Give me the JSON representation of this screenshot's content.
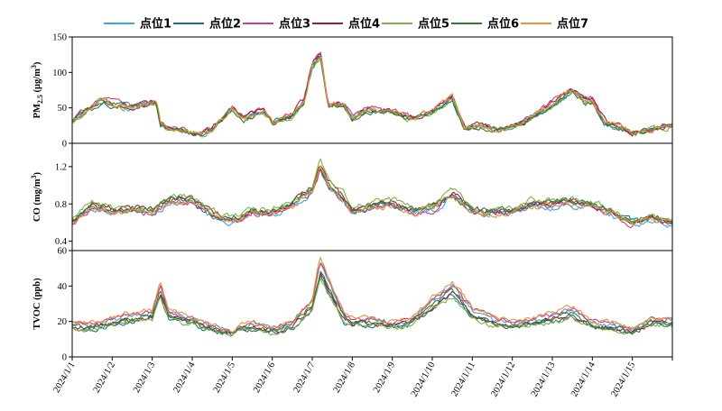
{
  "chart_data": {
    "type": "line",
    "x_categories": [
      "2024/1/1",
      "2024/1/2",
      "2024/1/3",
      "2024/1/4",
      "2024/1/5",
      "2024/1/6",
      "2024/1/7",
      "2024/1/8",
      "2024/1/9",
      "2024/1/10",
      "2024/1/11",
      "2024/1/12",
      "2024/1/13",
      "2024/1/14",
      "2024/1/15"
    ],
    "x_range": [
      "2024/1/1",
      "2024/1/16"
    ],
    "legend": {
      "placement": "top",
      "series": [
        {
          "name": "点位1",
          "color": "#3BA6DC"
        },
        {
          "name": "点位2",
          "color": "#1C6E8C"
        },
        {
          "name": "点位3",
          "color": "#CC3D8D"
        },
        {
          "name": "点位4",
          "color": "#9E1B3B"
        },
        {
          "name": "点位5",
          "color": "#7CB342"
        },
        {
          "name": "点位6",
          "color": "#2E7D32"
        },
        {
          "name": "点位7",
          "color": "#E8943A"
        }
      ]
    },
    "panels": [
      {
        "id": "pm25",
        "ylabel_main": "PM",
        "ylabel_sub": "2.5",
        "ylabel_unit": " (μg/m",
        "ylabel_sup": "3",
        "ylabel_close": ")",
        "ylim": [
          0,
          150
        ],
        "yticks": [
          0,
          50,
          100,
          150
        ],
        "ytick_labels": [
          "0",
          "50",
          "100",
          "150"
        ],
        "base_profile": [
          [
            0,
            30
          ],
          [
            0.3,
            45
          ],
          [
            0.8,
            63
          ],
          [
            1,
            55
          ],
          [
            1.5,
            50
          ],
          [
            1.8,
            55
          ],
          [
            2.1,
            60
          ],
          [
            2.2,
            30
          ],
          [
            2.4,
            20
          ],
          [
            2.8,
            18
          ],
          [
            3.2,
            12
          ],
          [
            3.5,
            20
          ],
          [
            4,
            50
          ],
          [
            4.3,
            35
          ],
          [
            4.8,
            45
          ],
          [
            5.0,
            30
          ],
          [
            5.5,
            40
          ],
          [
            5.8,
            60
          ],
          [
            6.0,
            110
          ],
          [
            6.2,
            125
          ],
          [
            6.4,
            55
          ],
          [
            6.8,
            55
          ],
          [
            7,
            35
          ],
          [
            7.4,
            48
          ],
          [
            8,
            45
          ],
          [
            8.5,
            35
          ],
          [
            9,
            45
          ],
          [
            9.5,
            65
          ],
          [
            9.8,
            20
          ],
          [
            10.2,
            25
          ],
          [
            10.8,
            20
          ],
          [
            11.3,
            30
          ],
          [
            12,
            55
          ],
          [
            12.5,
            75
          ],
          [
            12.8,
            60
          ],
          [
            13.0,
            60
          ],
          [
            13.3,
            30
          ],
          [
            14,
            15
          ],
          [
            14.5,
            20
          ],
          [
            15,
            25
          ]
        ],
        "noise": 6,
        "series_scale": [
          1.0,
          0.98,
          1.04,
          1.02,
          0.96,
          0.97,
          1.0
        ]
      },
      {
        "id": "co",
        "ylabel_main": "CO (mg/m",
        "ylabel_sup": "3",
        "ylabel_close": ")",
        "ylim": [
          0.3,
          1.45
        ],
        "yticks": [
          0.4,
          0.8,
          1.2
        ],
        "ytick_labels": [
          "0.4",
          "0.8",
          "1.2"
        ],
        "base_profile": [
          [
            0,
            0.62
          ],
          [
            0.5,
            0.78
          ],
          [
            1,
            0.72
          ],
          [
            1.5,
            0.74
          ],
          [
            2,
            0.72
          ],
          [
            2.5,
            0.85
          ],
          [
            3,
            0.82
          ],
          [
            3.5,
            0.68
          ],
          [
            4,
            0.62
          ],
          [
            4.5,
            0.72
          ],
          [
            5,
            0.7
          ],
          [
            5.5,
            0.8
          ],
          [
            6,
            0.95
          ],
          [
            6.2,
            1.2
          ],
          [
            6.4,
            1.0
          ],
          [
            6.8,
            0.85
          ],
          [
            7,
            0.72
          ],
          [
            7.5,
            0.78
          ],
          [
            8,
            0.8
          ],
          [
            8.5,
            0.72
          ],
          [
            9,
            0.75
          ],
          [
            9.5,
            0.9
          ],
          [
            10,
            0.72
          ],
          [
            10.5,
            0.7
          ],
          [
            11,
            0.72
          ],
          [
            11.5,
            0.8
          ],
          [
            12,
            0.8
          ],
          [
            12.5,
            0.82
          ],
          [
            13,
            0.78
          ],
          [
            13.5,
            0.7
          ],
          [
            14,
            0.6
          ],
          [
            14.5,
            0.65
          ],
          [
            15,
            0.58
          ]
        ],
        "noise": 0.05,
        "series_scale": [
          0.97,
          1.0,
          0.98,
          1.03,
          1.05,
          1.01,
          0.99
        ]
      },
      {
        "id": "tvoc",
        "ylabel_main": "TVOC (ppb)",
        "ylim": [
          0,
          60
        ],
        "yticks": [
          0,
          20,
          40,
          60
        ],
        "ytick_labels": [
          "0",
          "20",
          "40",
          "60"
        ],
        "base_profile": [
          [
            0,
            18
          ],
          [
            0.5,
            17
          ],
          [
            1,
            20
          ],
          [
            1.5,
            22
          ],
          [
            2,
            24
          ],
          [
            2.2,
            38
          ],
          [
            2.4,
            24
          ],
          [
            3,
            20
          ],
          [
            3.5,
            16
          ],
          [
            4,
            14
          ],
          [
            4.5,
            18
          ],
          [
            5,
            15
          ],
          [
            5.5,
            18
          ],
          [
            6,
            30
          ],
          [
            6.2,
            50
          ],
          [
            6.4,
            40
          ],
          [
            6.8,
            22
          ],
          [
            7,
            20
          ],
          [
            7.5,
            20
          ],
          [
            8,
            18
          ],
          [
            8.5,
            20
          ],
          [
            9,
            30
          ],
          [
            9.5,
            38
          ],
          [
            10,
            25
          ],
          [
            10.5,
            20
          ],
          [
            11,
            18
          ],
          [
            11.5,
            20
          ],
          [
            12,
            22
          ],
          [
            12.5,
            25
          ],
          [
            13,
            18
          ],
          [
            13.5,
            17
          ],
          [
            14,
            15
          ],
          [
            14.5,
            20
          ],
          [
            15,
            20
          ]
        ],
        "noise": 2.2,
        "series_scale": [
          1.05,
          0.92,
          1.08,
          0.95,
          0.9,
          0.98,
          1.12
        ]
      }
    ]
  }
}
